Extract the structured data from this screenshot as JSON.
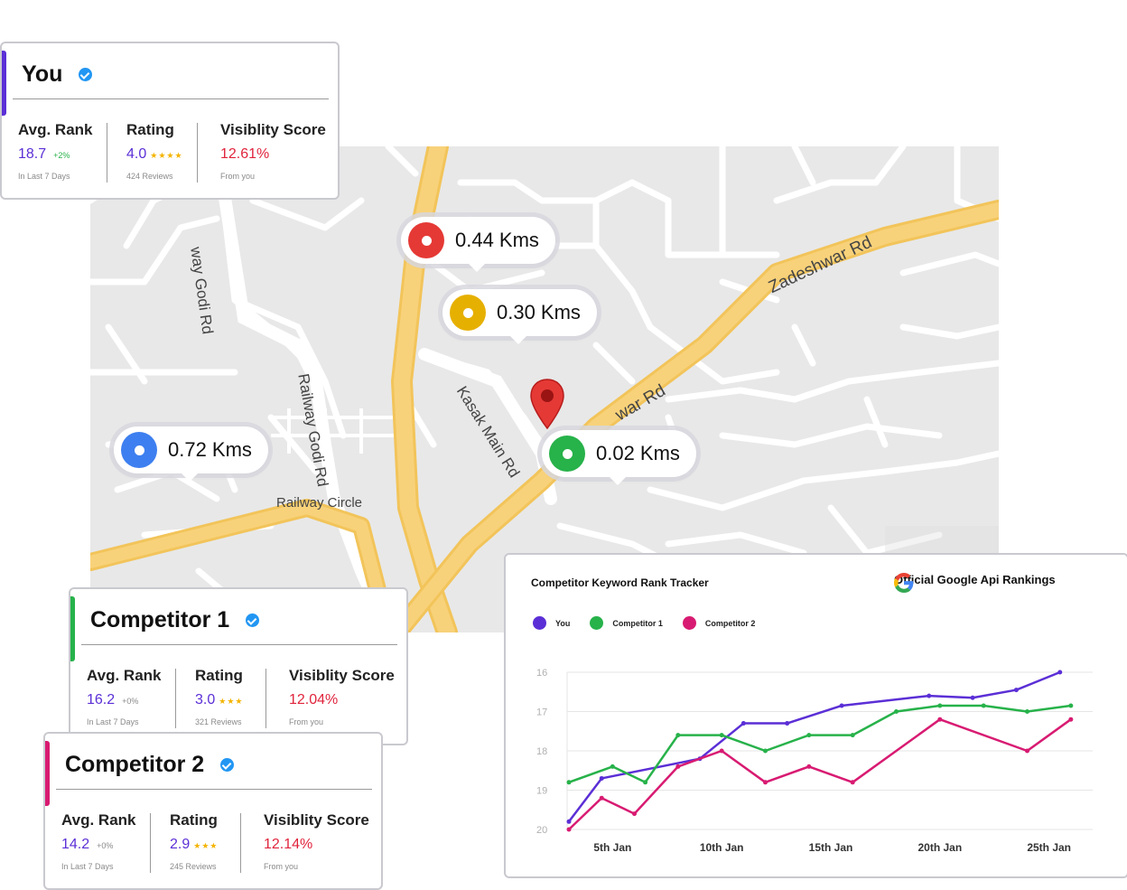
{
  "map": {
    "pins": [
      {
        "id": "red",
        "label": "0.44 Kms",
        "color": "#e53935"
      },
      {
        "id": "yellow",
        "label": "0.30 Kms",
        "color": "#e6b000"
      },
      {
        "id": "blue",
        "label": "0.72 Kms",
        "color": "#3d7ff0"
      },
      {
        "id": "green",
        "label": "0.02 Kms",
        "color": "#27b24a"
      }
    ],
    "roads": {
      "zadeshwar": "Zadeshwar Rd",
      "kasak": "Kasak Main Rd",
      "railway_godi": "Railway Godi Rd",
      "godi_top": "way Godi Rd",
      "railway_circle": "Railway Circle",
      "war_rd": "war Rd"
    },
    "marker_color": "#e53935"
  },
  "cards": {
    "you": {
      "name": "You",
      "accent": "#5b2fd6",
      "avg_rank_label": "Avg. Rank",
      "avg_rank": "18.7",
      "avg_rank_change": "+2%",
      "avg_rank_sub": "In Last 7 Days",
      "rating_label": "Rating",
      "rating": "4.0",
      "stars": "★★★★",
      "rating_sub": "424 Reviews",
      "vis_label": "Visiblity Score",
      "vis": "12.61%",
      "vis_sub": "From you"
    },
    "competitor1": {
      "name": "Competitor 1",
      "accent": "#27b24a",
      "avg_rank_label": "Avg. Rank",
      "avg_rank": "16.2",
      "avg_rank_change": "+0%",
      "avg_rank_sub": "In Last 7 Days",
      "rating_label": "Rating",
      "rating": "3.0",
      "stars": "★★★",
      "rating_sub": "321 Reviews",
      "vis_label": "Visiblity Score",
      "vis": "12.04%",
      "vis_sub": "From you"
    },
    "competitor2": {
      "name": "Competitor 2",
      "accent": "#d81b72",
      "avg_rank_label": "Avg. Rank",
      "avg_rank": "14.2",
      "avg_rank_change": "+0%",
      "avg_rank_sub": "In Last 7 Days",
      "rating_label": "Rating",
      "rating": "2.9",
      "stars": "★★★",
      "rating_sub": "245 Reviews",
      "vis_label": "Visiblity Score",
      "vis": "12.14%",
      "vis_sub": "From you"
    }
  },
  "tracker": {
    "title": "Competitor Keyword Rank Tracker",
    "google_label": "Official Google Api Rankings"
  },
  "chart_data": {
    "type": "line",
    "title": "Competitor Keyword Rank Tracker",
    "y_inverted": true,
    "ylim": [
      16,
      20
    ],
    "y_ticks": [
      "16",
      "17",
      "18",
      "19",
      "20"
    ],
    "x_ticks": [
      "5th Jan",
      "10th Jan",
      "15th Jan",
      "20th Jan",
      "25th Jan"
    ],
    "x": [
      3,
      4,
      5,
      6,
      7,
      8,
      9,
      10,
      11,
      12,
      13,
      14,
      15,
      16,
      17,
      18,
      19,
      20,
      21,
      22,
      23,
      24,
      25,
      26,
      27
    ],
    "grid": true,
    "legend": "top-left",
    "series": [
      {
        "name": "You",
        "color": "#5b2fd6",
        "points": [
          [
            3.0,
            19.8
          ],
          [
            4.5,
            18.7
          ],
          [
            9.0,
            18.2
          ],
          [
            11.0,
            17.3
          ],
          [
            13.0,
            17.3
          ],
          [
            15.5,
            16.85
          ],
          [
            19.5,
            16.6
          ],
          [
            21.5,
            16.65
          ],
          [
            23.5,
            16.45
          ],
          [
            25.5,
            16.0
          ]
        ]
      },
      {
        "name": "Competitor 1",
        "color": "#27b24a",
        "points": [
          [
            3.0,
            18.8
          ],
          [
            5.0,
            18.4
          ],
          [
            6.5,
            18.8
          ],
          [
            8.0,
            17.6
          ],
          [
            10.0,
            17.6
          ],
          [
            12.0,
            18.0
          ],
          [
            14.0,
            17.6
          ],
          [
            16.0,
            17.6
          ],
          [
            18.0,
            17.0
          ],
          [
            20.0,
            16.85
          ],
          [
            22.0,
            16.85
          ],
          [
            24.0,
            17.0
          ],
          [
            26.0,
            16.85
          ]
        ]
      },
      {
        "name": "Competitor 2",
        "color": "#d81b72",
        "points": [
          [
            3.0,
            20.0
          ],
          [
            4.5,
            19.2
          ],
          [
            6.0,
            19.6
          ],
          [
            8.0,
            18.4
          ],
          [
            10.0,
            18.0
          ],
          [
            12.0,
            18.8
          ],
          [
            14.0,
            18.4
          ],
          [
            16.0,
            18.8
          ],
          [
            20.0,
            17.2
          ],
          [
            24.0,
            18.0
          ],
          [
            26.0,
            17.2
          ]
        ]
      }
    ]
  }
}
